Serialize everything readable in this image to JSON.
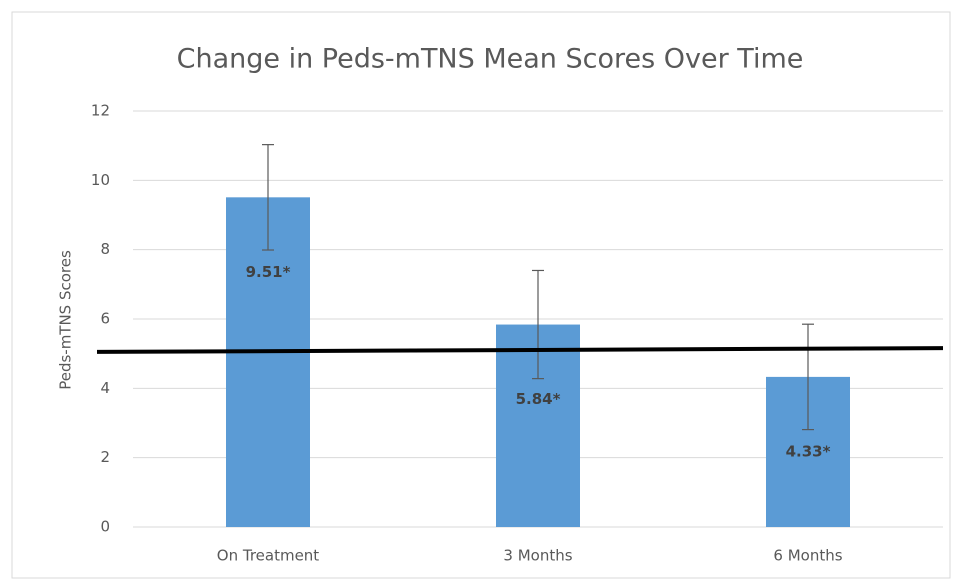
{
  "chart_data": {
    "type": "bar",
    "title": "Change in Peds-mTNS Mean Scores Over Time",
    "y_label": "Peds-mTNS Scores",
    "categories": [
      "On Treatment",
      "3 Months",
      "6 Months"
    ],
    "values": [
      9.51,
      5.84,
      4.33
    ],
    "value_labels": [
      "9.51*",
      "5.84*",
      "4.33*"
    ],
    "errors": [
      1.52,
      1.56,
      1.52
    ],
    "color": "#5b9bd5",
    "reference_line": [
      5.05,
      5.16
    ],
    "ylim": [
      0,
      12
    ],
    "yticks": [
      0,
      2,
      4,
      6,
      8,
      10,
      12
    ],
    "grid": true
  }
}
